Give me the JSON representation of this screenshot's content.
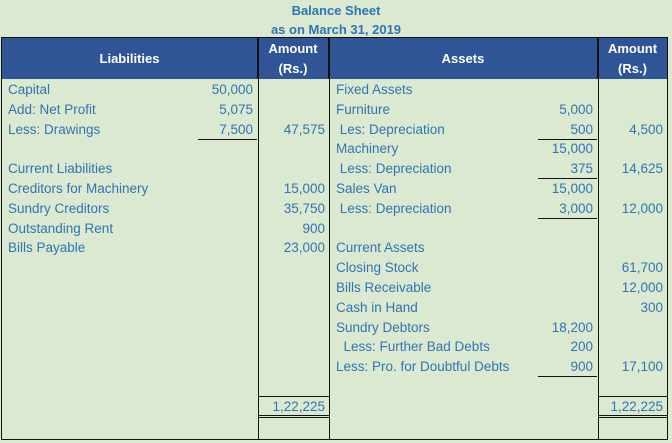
{
  "title": "Balance Sheet",
  "subtitle": "as on March 31, 2019",
  "headers": {
    "liabilities": "Liabilities",
    "amount": "Amount (Rs.)",
    "assets": "Assets",
    "amount2": "Amount (Rs.)"
  },
  "rows": [
    {
      "ll": "Capital",
      "la": "50,000",
      "lt": "",
      "al": "Fixed Assets",
      "aa": "",
      "at": ""
    },
    {
      "ll": "Add: Net Profit",
      "la": "5,075",
      "lt": "",
      "al": "Furniture",
      "aa": "5,000",
      "at": ""
    },
    {
      "ll": "Less: Drawings",
      "la": "7,500",
      "lt": "47,575",
      "al": " Les: Depreciation",
      "aa": "500",
      "at": "4,500",
      "lau": true,
      "aau": true
    },
    {
      "ll": "",
      "la": "",
      "lt": "",
      "al": "Machinery",
      "aa": "15,000",
      "at": ""
    },
    {
      "ll": "Current Liabilities",
      "la": "",
      "lt": "",
      "al": " Less: Depreciation",
      "aa": "375",
      "at": "14,625",
      "aau": true
    },
    {
      "ll": "Creditors for Machinery",
      "la": "",
      "lt": "15,000",
      "al": "Sales Van",
      "aa": "15,000",
      "at": ""
    },
    {
      "ll": "Sundry Creditors",
      "la": "",
      "lt": "35,750",
      "al": " Less: Depreciation",
      "aa": "3,000",
      "at": "12,000",
      "aau": true
    },
    {
      "ll": "Outstanding Rent",
      "la": "",
      "lt": "900",
      "al": "",
      "aa": "",
      "at": ""
    },
    {
      "ll": "Bills Payable",
      "la": "",
      "lt": "23,000",
      "al": "Current Assets",
      "aa": "",
      "at": ""
    },
    {
      "ll": "",
      "la": "",
      "lt": "",
      "al": "Closing Stock",
      "aa": "",
      "at": "61,700"
    },
    {
      "ll": "",
      "la": "",
      "lt": "",
      "al": "Bills Receivable",
      "aa": "",
      "at": "12,000"
    },
    {
      "ll": "",
      "la": "",
      "lt": "",
      "al": "Cash in Hand",
      "aa": "",
      "at": "300"
    },
    {
      "ll": "",
      "la": "",
      "lt": "",
      "al": "Sundry Debtors",
      "aa": "18,200",
      "at": ""
    },
    {
      "ll": "",
      "la": "",
      "lt": "",
      "al": "  Less: Further Bad Debts",
      "aa": "200",
      "at": ""
    },
    {
      "ll": "",
      "la": "",
      "lt": "",
      "al": "Less: Pro. for Doubtful Debts",
      "aa": "900",
      "at": "17,100",
      "aau": true
    }
  ],
  "totals": {
    "liabilities": "1,22,225",
    "assets": "1,22,225"
  }
}
